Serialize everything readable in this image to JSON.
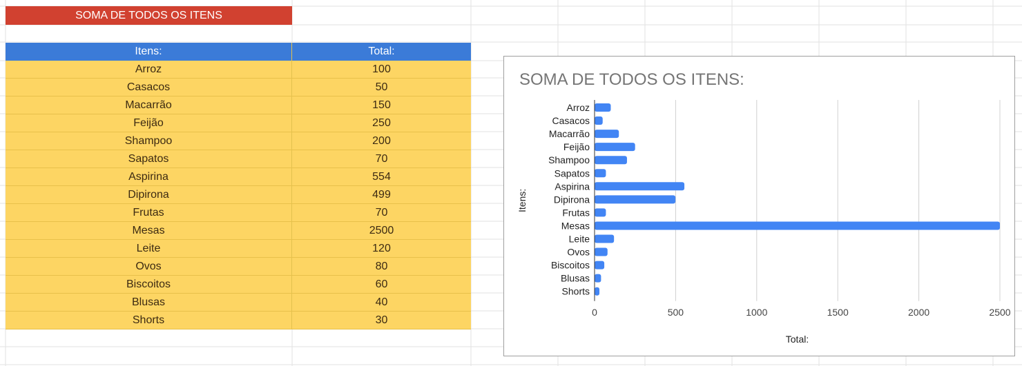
{
  "sheet": {
    "title_cell": "SOMA DE TODOS OS ITENS",
    "table": {
      "headers": [
        "Itens:",
        "Total:"
      ],
      "rows": [
        [
          "Arroz",
          "100"
        ],
        [
          "Casacos",
          "50"
        ],
        [
          "Macarrão",
          "150"
        ],
        [
          "Feijão",
          "250"
        ],
        [
          "Shampoo",
          "200"
        ],
        [
          "Sapatos",
          "70"
        ],
        [
          "Aspirina",
          "554"
        ],
        [
          "Dipirona",
          "499"
        ],
        [
          "Frutas",
          "70"
        ],
        [
          "Mesas",
          "2500"
        ],
        [
          "Leite",
          "120"
        ],
        [
          "Ovos",
          "80"
        ],
        [
          "Biscoitos",
          "60"
        ],
        [
          "Blusas",
          "40"
        ],
        [
          "Shorts",
          "30"
        ]
      ]
    }
  },
  "colors": {
    "title_bg": "#d14130",
    "header_bg": "#3b7bd8",
    "row_bg": "#fdd563",
    "bar": "#4285f4"
  },
  "chart_data": {
    "type": "bar",
    "orientation": "horizontal",
    "title": "SOMA DE TODOS OS ITENS:",
    "xlabel": "Total:",
    "ylabel": "Itens:",
    "categories": [
      "Arroz",
      "Casacos",
      "Macarrão",
      "Feijão",
      "Shampoo",
      "Sapatos",
      "Aspirina",
      "Dipirona",
      "Frutas",
      "Mesas",
      "Leite",
      "Ovos",
      "Biscoitos",
      "Blusas",
      "Shorts"
    ],
    "values": [
      100,
      50,
      150,
      250,
      200,
      70,
      554,
      499,
      70,
      2500,
      120,
      80,
      60,
      40,
      30
    ],
    "xlim": [
      0,
      2500
    ],
    "xticks": [
      0,
      500,
      1000,
      1500,
      2000,
      2500
    ],
    "grid": true,
    "legend": "none"
  }
}
